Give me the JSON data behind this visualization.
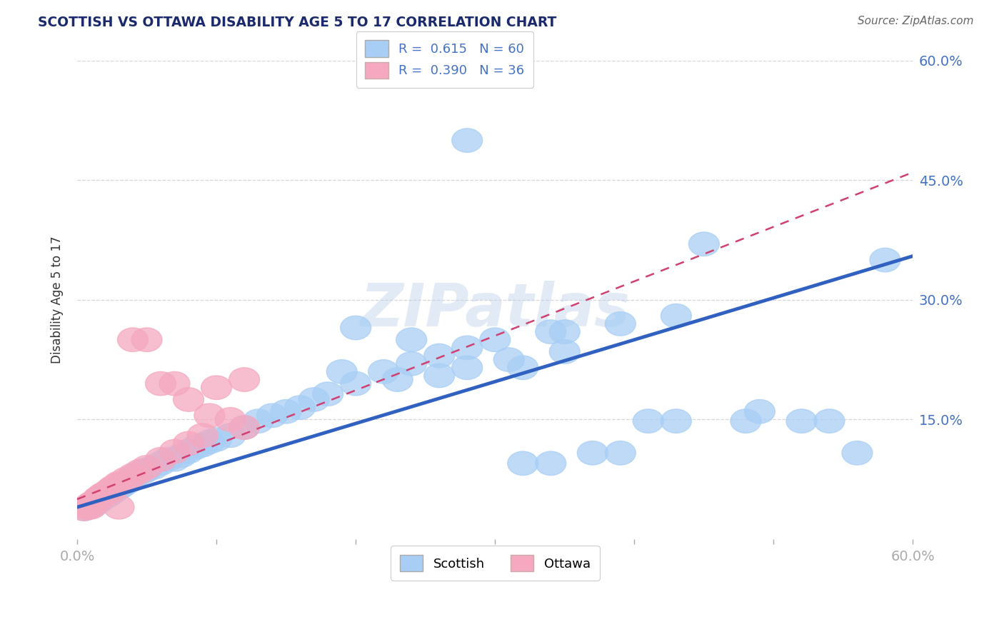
{
  "title": "SCOTTISH VS OTTAWA DISABILITY AGE 5 TO 17 CORRELATION CHART",
  "source": "Source: ZipAtlas.com",
  "ylabel": "Disability Age 5 to 17",
  "xlim": [
    0.0,
    0.6
  ],
  "ylim": [
    0.0,
    0.6
  ],
  "legend_r_scottish": "0.615",
  "legend_n_scottish": "60",
  "legend_r_ottawa": "0.390",
  "legend_n_ottawa": "36",
  "scottish_color": "#a8cef5",
  "scottish_line_color": "#3060c0",
  "ottawa_color": "#f5a8c0",
  "ottawa_line_color": "#d04070",
  "title_color": "#1a2a6c",
  "source_color": "#666666",
  "axis_label_color": "#4472c4",
  "grid_color": "#cccccc",
  "background_color": "#ffffff",
  "watermark": "ZIPatlas",
  "scottish_points": [
    [
      0.005,
      0.038
    ],
    [
      0.008,
      0.04
    ],
    [
      0.01,
      0.042
    ],
    [
      0.01,
      0.044
    ],
    [
      0.012,
      0.043
    ],
    [
      0.013,
      0.045
    ],
    [
      0.014,
      0.046
    ],
    [
      0.015,
      0.047
    ],
    [
      0.015,
      0.048
    ],
    [
      0.016,
      0.05
    ],
    [
      0.017,
      0.05
    ],
    [
      0.018,
      0.051
    ],
    [
      0.018,
      0.052
    ],
    [
      0.019,
      0.053
    ],
    [
      0.02,
      0.054
    ],
    [
      0.02,
      0.055
    ],
    [
      0.022,
      0.055
    ],
    [
      0.023,
      0.057
    ],
    [
      0.024,
      0.058
    ],
    [
      0.025,
      0.059
    ],
    [
      0.026,
      0.06
    ],
    [
      0.027,
      0.062
    ],
    [
      0.028,
      0.063
    ],
    [
      0.03,
      0.065
    ],
    [
      0.032,
      0.067
    ],
    [
      0.034,
      0.07
    ],
    [
      0.036,
      0.072
    ],
    [
      0.038,
      0.075
    ],
    [
      0.04,
      0.077
    ],
    [
      0.042,
      0.08
    ],
    [
      0.045,
      0.083
    ],
    [
      0.048,
      0.085
    ],
    [
      0.05,
      0.087
    ],
    [
      0.055,
      0.09
    ],
    [
      0.06,
      0.095
    ],
    [
      0.065,
      0.1
    ],
    [
      0.07,
      0.1
    ],
    [
      0.075,
      0.105
    ],
    [
      0.08,
      0.11
    ],
    [
      0.085,
      0.115
    ],
    [
      0.09,
      0.118
    ],
    [
      0.095,
      0.122
    ],
    [
      0.1,
      0.125
    ],
    [
      0.11,
      0.13
    ],
    [
      0.12,
      0.14
    ],
    [
      0.13,
      0.148
    ],
    [
      0.14,
      0.155
    ],
    [
      0.15,
      0.16
    ],
    [
      0.16,
      0.165
    ],
    [
      0.17,
      0.175
    ],
    [
      0.18,
      0.182
    ],
    [
      0.2,
      0.195
    ],
    [
      0.22,
      0.21
    ],
    [
      0.24,
      0.22
    ],
    [
      0.26,
      0.23
    ],
    [
      0.28,
      0.24
    ],
    [
      0.3,
      0.25
    ],
    [
      0.35,
      0.26
    ],
    [
      0.39,
      0.27
    ],
    [
      0.58,
      0.35
    ]
  ],
  "ottawa_points": [
    [
      0.005,
      0.038
    ],
    [
      0.007,
      0.04
    ],
    [
      0.008,
      0.04
    ],
    [
      0.009,
      0.042
    ],
    [
      0.01,
      0.043
    ],
    [
      0.01,
      0.044
    ],
    [
      0.011,
      0.045
    ],
    [
      0.012,
      0.046
    ],
    [
      0.013,
      0.047
    ],
    [
      0.014,
      0.048
    ],
    [
      0.015,
      0.05
    ],
    [
      0.015,
      0.051
    ],
    [
      0.016,
      0.052
    ],
    [
      0.017,
      0.053
    ],
    [
      0.018,
      0.055
    ],
    [
      0.019,
      0.056
    ],
    [
      0.02,
      0.057
    ],
    [
      0.022,
      0.059
    ],
    [
      0.023,
      0.06
    ],
    [
      0.024,
      0.062
    ],
    [
      0.025,
      0.063
    ],
    [
      0.026,
      0.065
    ],
    [
      0.028,
      0.067
    ],
    [
      0.03,
      0.07
    ],
    [
      0.035,
      0.075
    ],
    [
      0.04,
      0.08
    ],
    [
      0.045,
      0.085
    ],
    [
      0.05,
      0.09
    ],
    [
      0.06,
      0.1
    ],
    [
      0.07,
      0.11
    ],
    [
      0.08,
      0.12
    ],
    [
      0.09,
      0.13
    ],
    [
      0.05,
      0.25
    ],
    [
      0.1,
      0.19
    ],
    [
      0.12,
      0.2
    ],
    [
      0.03,
      0.04
    ]
  ],
  "extra_scottish_outliers": [
    [
      0.28,
      0.5
    ],
    [
      0.45,
      0.37
    ],
    [
      0.43,
      0.28
    ],
    [
      0.34,
      0.26
    ],
    [
      0.35,
      0.235
    ],
    [
      0.32,
      0.215
    ],
    [
      0.31,
      0.225
    ],
    [
      0.28,
      0.215
    ],
    [
      0.26,
      0.205
    ],
    [
      0.24,
      0.25
    ],
    [
      0.23,
      0.2
    ],
    [
      0.2,
      0.265
    ],
    [
      0.19,
      0.21
    ],
    [
      0.32,
      0.095
    ],
    [
      0.34,
      0.095
    ],
    [
      0.37,
      0.108
    ],
    [
      0.39,
      0.108
    ],
    [
      0.41,
      0.148
    ],
    [
      0.43,
      0.148
    ],
    [
      0.48,
      0.148
    ],
    [
      0.49,
      0.16
    ],
    [
      0.52,
      0.148
    ],
    [
      0.54,
      0.148
    ],
    [
      0.56,
      0.108
    ]
  ],
  "extra_ottawa_outliers": [
    [
      0.04,
      0.25
    ],
    [
      0.06,
      0.195
    ],
    [
      0.07,
      0.195
    ],
    [
      0.08,
      0.175
    ],
    [
      0.095,
      0.155
    ],
    [
      0.11,
      0.15
    ],
    [
      0.12,
      0.14
    ],
    [
      0.01,
      0.04
    ]
  ]
}
